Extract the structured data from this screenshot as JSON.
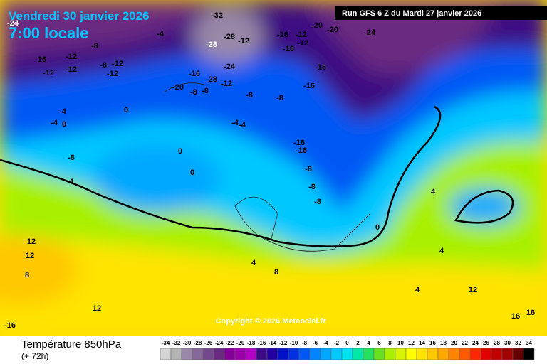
{
  "header": {
    "date": "Vendredi 30 janvier 2026",
    "time": "7:00 locale",
    "run": "Run GFS 6 Z du Mardi 27 janvier 2026"
  },
  "copyright": "Copyright © 2026 Meteociel.fr",
  "footer": {
    "title": "Température 850hPa",
    "lead": "(+ 72h)"
  },
  "legend": {
    "values": [
      -34,
      -32,
      -30,
      -28,
      -26,
      -24,
      -22,
      -20,
      -18,
      -16,
      -14,
      -12,
      -10,
      -8,
      -6,
      -4,
      -2,
      0,
      2,
      4,
      6,
      8,
      10,
      12,
      14,
      16,
      18,
      20,
      22,
      24,
      26,
      28,
      30,
      32,
      34
    ],
    "colors": [
      "#d4d4d4",
      "#b4b4b4",
      "#9a88a8",
      "#86689a",
      "#74488c",
      "#6a2a80",
      "#820096",
      "#9a00aa",
      "#b400c4",
      "#3c0a82",
      "#2000a0",
      "#0010c8",
      "#0030e0",
      "#0058f4",
      "#0084ff",
      "#00a8ff",
      "#00c8ff",
      "#00e4f0",
      "#00e8a8",
      "#28e060",
      "#68e020",
      "#a8f000",
      "#d8f400",
      "#ffff00",
      "#ffe400",
      "#ffc800",
      "#ffa800",
      "#ff8400",
      "#ff5a00",
      "#ff2800",
      "#e00000",
      "#c00000",
      "#a00000",
      "#640000",
      "#000000"
    ]
  },
  "map_labels": [
    -24,
    -32,
    -28,
    -28,
    -12,
    -24,
    -16,
    -12,
    -16,
    -12,
    -20,
    -20,
    -24,
    -16,
    -12,
    -8,
    -12,
    -12,
    -8,
    -12,
    -12,
    -4,
    -16,
    -28,
    -20,
    -8,
    -8,
    -12,
    -8,
    -8,
    -16,
    -16,
    -4,
    -4,
    0,
    0,
    -8,
    -16,
    -16,
    -8,
    -8,
    -8,
    -4,
    -4,
    0,
    0,
    4,
    4,
    0,
    4,
    8,
    12,
    12,
    8,
    12,
    16,
    16,
    4,
    4,
    12,
    -16
  ]
}
